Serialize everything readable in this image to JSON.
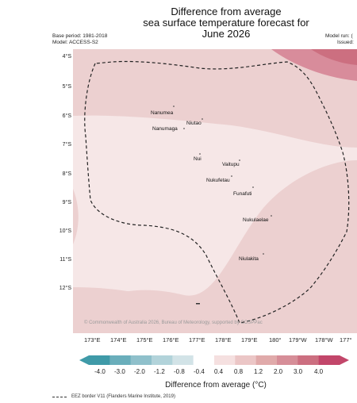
{
  "title": {
    "line1": "Difference from average",
    "line2": "sea surface temperature forecast for",
    "line3": "June 2026"
  },
  "meta_left": {
    "base_period": "Base period: 1981-2018",
    "model": "Model: ACCESS-S2"
  },
  "meta_right": {
    "model_run": "Model run: (",
    "issued": "Issued:"
  },
  "lat_labels": [
    "4°S",
    "5°S",
    "6°S",
    "7°S",
    "8°S",
    "9°S",
    "10°S",
    "11°S",
    "12°S"
  ],
  "lon_labels": [
    "173°E",
    "174°E",
    "175°E",
    "176°E",
    "177°E",
    "178°E",
    "179°E",
    "180°",
    "179°W",
    "178°W",
    "177°"
  ],
  "islands": [
    {
      "name": "Nanumea"
    },
    {
      "name": "Niutao"
    },
    {
      "name": "Nanumaga"
    },
    {
      "name": "Nui"
    },
    {
      "name": "Vaitupu"
    },
    {
      "name": "Nukufetau"
    },
    {
      "name": "Funafuti"
    },
    {
      "name": "Nukulaelae"
    },
    {
      "name": "Niulakita"
    }
  ],
  "copyright": "© Commonwealth of Australia 2026, Bureau of Meteorology, supported by COSPPac",
  "colorbar": {
    "ticks": [
      "-4.0",
      "-3.0",
      "-2.0",
      "-1.2",
      "-0.8",
      "-0.4",
      "0.4",
      "0.8",
      "1.2",
      "2.0",
      "3.0",
      "4.0"
    ],
    "colors": [
      "#3f9aa8",
      "#6aaebb",
      "#8fc0cb",
      "#b2d3da",
      "#d2e3e7",
      "#ffffff",
      "#f5e0e0",
      "#ebc6c6",
      "#e0aaaa",
      "#d68e98",
      "#cc6f80",
      "#c2466a"
    ],
    "label": "Difference from average (°C)"
  },
  "legend_note": "EEZ border V11 (Flanders Marine Institute, 2019)",
  "map_colors": {
    "very_light": "#f6e7e7",
    "light": "#ecd0d0",
    "medium": "#e2b5b7",
    "dark": "#d88c9b",
    "eez_line": "#222222"
  }
}
